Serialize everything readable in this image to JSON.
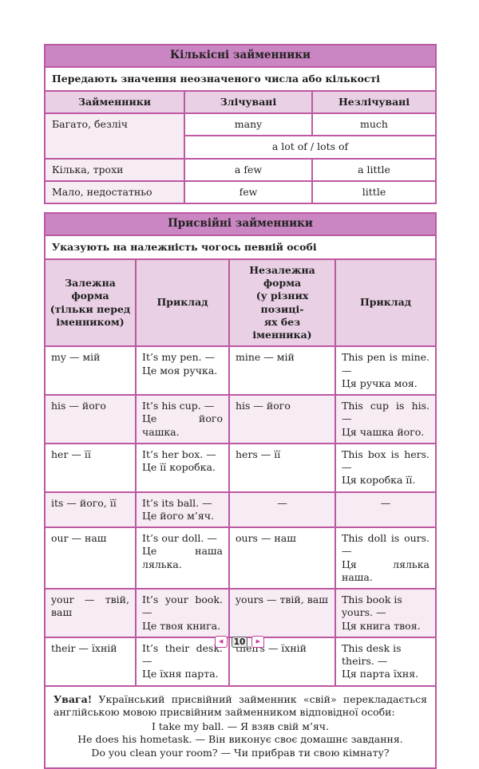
{
  "quantitative": {
    "title": "Кількісні займенники",
    "subtitle": "Передають значення неозначеного числа або кількості",
    "col_headers": [
      "Займенники",
      "Злічувані",
      "Незлічувані"
    ],
    "rows": [
      {
        "label": "Багато, безліч",
        "countable": "many",
        "uncountable": "much"
      },
      {
        "both": "a lot of / lots of"
      },
      {
        "label": "Кілька, трохи",
        "countable": "a few",
        "uncountable": "a little"
      },
      {
        "label": "Мало, недостатньо",
        "countable": "few",
        "uncountable": "little"
      }
    ]
  },
  "possessive": {
    "title": "Присвійні займенники",
    "subtitle": "Указують на належність чогось певній особі",
    "col_headers": [
      "Залежна форма\n(тільки перед\nіменником)",
      "Приклад",
      "Незалежна форма\n(у різних позиці-\nях без іменника)",
      "Приклад"
    ],
    "rows": [
      {
        "dependent": "my — мій",
        "dep_example": "It’s my pen. —\nЦе моя ручка.",
        "independent": "mine — мій",
        "indep_example": "This pen is mine. —\nЦя ручка моя."
      },
      {
        "dependent": "his — його",
        "dep_example": "It’s his cup. —\nЦе його чашка.",
        "independent": "his — його",
        "indep_example": "This cup is his. —\nЦя чашка його."
      },
      {
        "dependent": "her — її",
        "dep_example": "It’s her box. —\nЦе її коробка.",
        "independent": "hers — її",
        "indep_example": "This box is hers. —\nЦя коробка її."
      },
      {
        "dependent": "its — його, її",
        "dep_example": "It’s its ball. —\nЦе його м’яч.",
        "independent": "—",
        "indep_example": "—"
      },
      {
        "dependent": "our — наш",
        "dep_example": "It’s our doll. —\nЦе наша лялька.",
        "independent": "ours — наш",
        "indep_example": "This doll is ours. —\nЦя лялька наша."
      },
      {
        "dependent": "your — твій, ваш",
        "dep_example": "It’s your book. —\nЦе твоя книга.",
        "independent": "yours — твій, ваш",
        "indep_example": "This book is\nyours. —\nЦя книга твоя."
      },
      {
        "dependent": "their — їхній",
        "dep_example": "It’s their desk. —\nЦе їхня парта.",
        "independent": "theirs — їхній",
        "indep_example": "This desk is\ntheirs. —\nЦя парта їхня."
      }
    ],
    "note": {
      "warning_label": "Увага!",
      "intro": "Український присвійний займенник «свій» перекладається англійською мовою присвійним займенником відповідної особи:",
      "examples": [
        "I take my ball. — Я взяв свій м’яч.",
        "He does his hometask. — Він виконує своє домашнє завдання.",
        "Do you clean your room? — Чи прибрав ти свою кімнату?"
      ]
    }
  },
  "footer": {
    "page_number": "10",
    "prev_icon": "◀",
    "next_icon": "▶"
  }
}
